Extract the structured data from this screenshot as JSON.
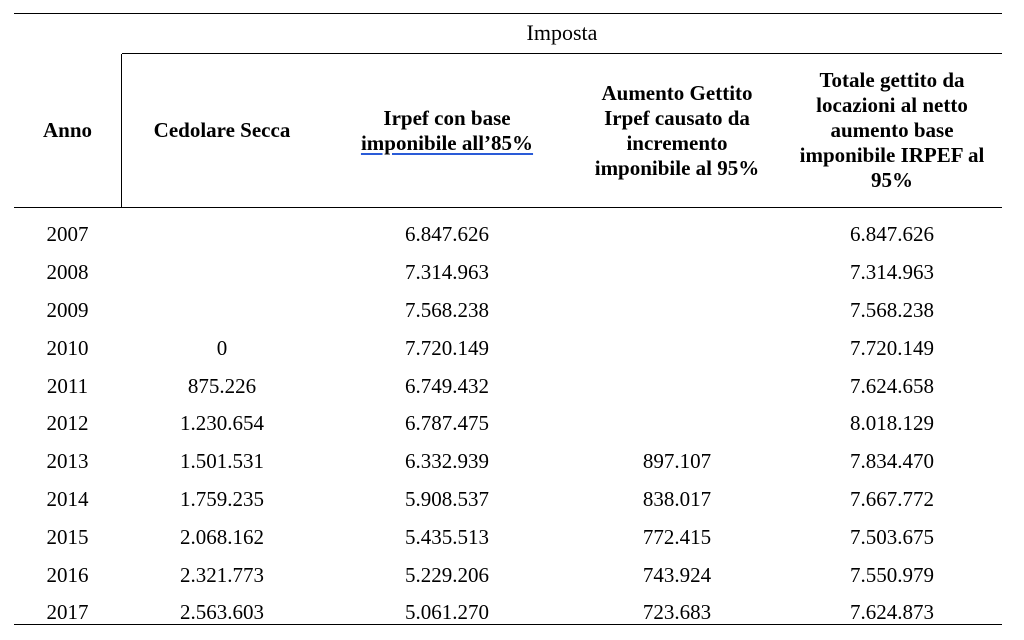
{
  "table": {
    "group_header": "Imposta",
    "columns": {
      "anno": "Anno",
      "cedolare": "Cedolare Secca",
      "irpef_line1": "Irpef con base",
      "irpef_line2": "imponibile  all’85%",
      "aumento": "Aumento Gettito Irpef causato da incremento imponibile al 95%",
      "totale": "Totale gettito da locazioni al netto aumento base imponibile IRPEF al 95%"
    },
    "rows": [
      {
        "anno": "2007",
        "cedolare": "",
        "irpef": "6.847.626",
        "aumento": "",
        "totale": "6.847.626"
      },
      {
        "anno": "2008",
        "cedolare": "",
        "irpef": "7.314.963",
        "aumento": "",
        "totale": "7.314.963"
      },
      {
        "anno": "2009",
        "cedolare": "",
        "irpef": "7.568.238",
        "aumento": "",
        "totale": "7.568.238"
      },
      {
        "anno": "2010",
        "cedolare": "0",
        "irpef": "7.720.149",
        "aumento": "",
        "totale": "7.720.149"
      },
      {
        "anno": "2011",
        "cedolare": "875.226",
        "irpef": "6.749.432",
        "aumento": "",
        "totale": "7.624.658"
      },
      {
        "anno": "2012",
        "cedolare": "1.230.654",
        "irpef": "6.787.475",
        "aumento": "",
        "totale": "8.018.129"
      },
      {
        "anno": "2013",
        "cedolare": "1.501.531",
        "irpef": "6.332.939",
        "aumento": "897.107",
        "totale": "7.834.470"
      },
      {
        "anno": "2014",
        "cedolare": "1.759.235",
        "irpef": "5.908.537",
        "aumento": "838.017",
        "totale": "7.667.772"
      },
      {
        "anno": "2015",
        "cedolare": "2.068.162",
        "irpef": "5.435.513",
        "aumento": "772.415",
        "totale": "7.503.675"
      },
      {
        "anno": "2016",
        "cedolare": "2.321.773",
        "irpef": "5.229.206",
        "aumento": "743.924",
        "totale": "7.550.979"
      },
      {
        "anno": "2017",
        "cedolare": "2.563.603",
        "irpef": "5.061.270",
        "aumento": "723.683",
        "totale": "7.624.873"
      }
    ]
  },
  "style": {
    "spellcheck_underline_color": "#2a5bd7"
  }
}
